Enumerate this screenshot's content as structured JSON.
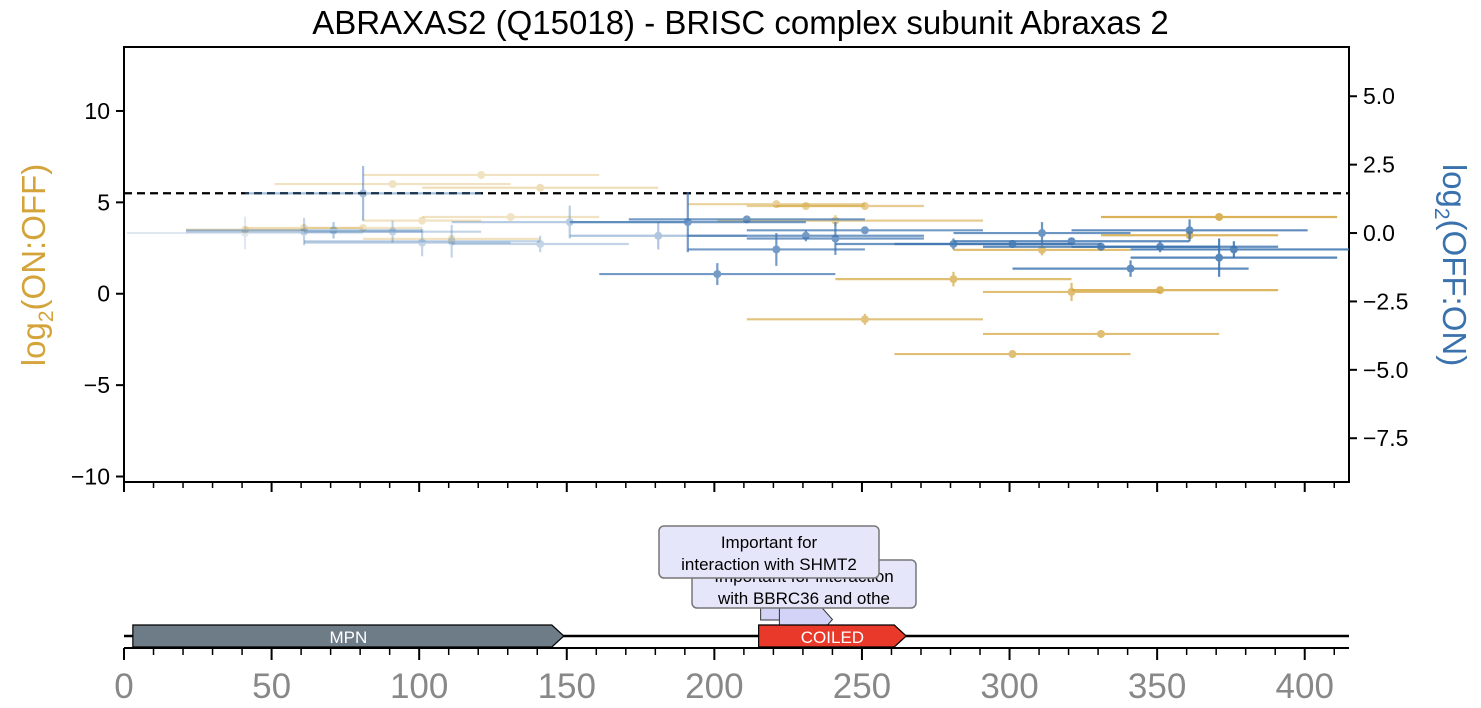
{
  "chart_data": {
    "type": "scatter",
    "title": "ABRAXAS2 (Q15018) - BRISC complex subunit Abraxas 2",
    "left_axis_label": {
      "main": "log",
      "sub": "2",
      "rest": "(ON:OFF)"
    },
    "right_axis_label": {
      "main": "log",
      "sub": "2",
      "rest": "(OFF:ON)"
    },
    "colors": {
      "on_off": "#D4A43A",
      "off_on": "#3A72AE",
      "coiled": "#E8392A",
      "mpn": "#6E7C88",
      "region": "#D3D3F7"
    },
    "x_range": [
      0,
      415
    ],
    "left_ylim": [
      -10.3,
      13.5
    ],
    "right_ylim": [
      -9.1,
      6.8
    ],
    "left_yticks": [
      "10",
      "5",
      "0",
      "−5",
      "−10"
    ],
    "left_ytick_values": [
      10,
      5,
      0,
      -5,
      -10
    ],
    "right_yticks": [
      "5.0",
      "2.5",
      "0.0",
      "−2.5",
      "−5.0",
      "−7.5"
    ],
    "right_ytick_values": [
      5.0,
      2.5,
      0.0,
      -2.5,
      -5.0,
      -7.5
    ],
    "threshold_left": 5.5,
    "xticks": [
      "0",
      "50",
      "100",
      "150",
      "200",
      "250",
      "300",
      "350",
      "400"
    ],
    "xtick_values": [
      0,
      50,
      100,
      150,
      200,
      250,
      300,
      350,
      400
    ],
    "series": [
      {
        "name": "log2(ON:OFF)",
        "axis": "left",
        "points": [
          {
            "x": 41,
            "y": 3.5,
            "xmin": 21,
            "xmax": 61,
            "yerr": 0.2,
            "alpha": 0.35
          },
          {
            "x": 61,
            "y": 3.6,
            "xmin": 41,
            "xmax": 81,
            "yerr": 0.2,
            "alpha": 0.35
          },
          {
            "x": 81,
            "y": 3.6,
            "xmin": 61,
            "xmax": 101,
            "yerr": 0.2,
            "alpha": 0.3
          },
          {
            "x": 91,
            "y": 6.0,
            "xmin": 51,
            "xmax": 131,
            "yerr": 0.2,
            "alpha": 0.3
          },
          {
            "x": 101,
            "y": 4.0,
            "xmin": 81,
            "xmax": 121,
            "yerr": 0.2,
            "alpha": 0.3
          },
          {
            "x": 111,
            "y": 3.0,
            "xmin": 81,
            "xmax": 141,
            "yerr": 0.2,
            "alpha": 0.3
          },
          {
            "x": 121,
            "y": 6.5,
            "xmin": 81,
            "xmax": 161,
            "yerr": 0.2,
            "alpha": 0.3
          },
          {
            "x": 131,
            "y": 4.2,
            "xmin": 101,
            "xmax": 161,
            "yerr": 0.2,
            "alpha": 0.3
          },
          {
            "x": 141,
            "y": 5.8,
            "xmin": 101,
            "xmax": 181,
            "yerr": 0.2,
            "alpha": 0.35
          },
          {
            "x": 221,
            "y": 4.9,
            "xmin": 191,
            "xmax": 251,
            "yerr": 0.2,
            "alpha": 0.5
          },
          {
            "x": 231,
            "y": 4.8,
            "xmin": 211,
            "xmax": 251,
            "yerr": 0.2,
            "alpha": 0.5
          },
          {
            "x": 241,
            "y": 4.0,
            "xmin": 201,
            "xmax": 291,
            "yerr": 0.3,
            "alpha": 0.55
          },
          {
            "x": 251,
            "y": 4.8,
            "xmin": 221,
            "xmax": 271,
            "yerr": 0.2,
            "alpha": 0.55
          },
          {
            "x": 251,
            "y": -1.4,
            "xmin": 211,
            "xmax": 291,
            "yerr": 0.3,
            "alpha": 0.65
          },
          {
            "x": 281,
            "y": 0.8,
            "xmin": 241,
            "xmax": 321,
            "yerr": 0.4,
            "alpha": 0.7
          },
          {
            "x": 301,
            "y": -3.3,
            "xmin": 261,
            "xmax": 341,
            "yerr": 0.2,
            "alpha": 0.7
          },
          {
            "x": 311,
            "y": 2.4,
            "xmin": 281,
            "xmax": 341,
            "yerr": 0.3,
            "alpha": 0.7
          },
          {
            "x": 321,
            "y": 0.1,
            "xmin": 291,
            "xmax": 351,
            "yerr": 0.5,
            "alpha": 0.7
          },
          {
            "x": 331,
            "y": -2.2,
            "xmin": 291,
            "xmax": 371,
            "yerr": 0.2,
            "alpha": 0.7
          },
          {
            "x": 351,
            "y": 0.2,
            "xmin": 321,
            "xmax": 391,
            "yerr": 0.2,
            "alpha": 0.8
          },
          {
            "x": 361,
            "y": 3.2,
            "xmin": 331,
            "xmax": 391,
            "yerr": 0.2,
            "alpha": 0.8
          },
          {
            "x": 371,
            "y": 4.2,
            "xmin": 331,
            "xmax": 411,
            "yerr": 0.2,
            "alpha": 0.85
          }
        ]
      },
      {
        "name": "log2(OFF:ON)",
        "axis": "right",
        "points": [
          {
            "x": 41,
            "y": 0.0,
            "xmin": 1,
            "xmax": 81,
            "yerr": 0.6,
            "alpha": 0.15
          },
          {
            "x": 61,
            "y": 0.05,
            "xmin": 21,
            "xmax": 101,
            "yerr": 0.5,
            "alpha": 0.3
          },
          {
            "x": 71,
            "y": 0.1,
            "xmin": 21,
            "xmax": 101,
            "yerr": 0.3,
            "alpha": 0.4
          },
          {
            "x": 81,
            "y": 1.45,
            "xmin": 41,
            "xmax": 121,
            "yerr": 1.0,
            "alpha": 0.45
          },
          {
            "x": 91,
            "y": 0.05,
            "xmin": 61,
            "xmax": 121,
            "yerr": 0.4,
            "alpha": 0.3
          },
          {
            "x": 101,
            "y": -0.35,
            "xmin": 61,
            "xmax": 131,
            "yerr": 0.5,
            "alpha": 0.3
          },
          {
            "x": 111,
            "y": -0.3,
            "xmin": 61,
            "xmax": 141,
            "yerr": 0.6,
            "alpha": 0.3
          },
          {
            "x": 141,
            "y": -0.4,
            "xmin": 111,
            "xmax": 171,
            "yerr": 0.3,
            "alpha": 0.3
          },
          {
            "x": 151,
            "y": 0.4,
            "xmin": 111,
            "xmax": 191,
            "yerr": 0.6,
            "alpha": 0.35
          },
          {
            "x": 181,
            "y": -0.1,
            "xmin": 151,
            "xmax": 211,
            "yerr": 0.5,
            "alpha": 0.4
          },
          {
            "x": 191,
            "y": 0.4,
            "xmin": 151,
            "xmax": 231,
            "yerr": 1.1,
            "alpha": 0.7
          },
          {
            "x": 201,
            "y": -1.5,
            "xmin": 161,
            "xmax": 241,
            "yerr": 0.4,
            "alpha": 0.7
          },
          {
            "x": 211,
            "y": 0.5,
            "xmin": 171,
            "xmax": 251,
            "yerr": 0.1,
            "alpha": 0.7
          },
          {
            "x": 221,
            "y": -0.6,
            "xmin": 191,
            "xmax": 251,
            "yerr": 0.6,
            "alpha": 0.7
          },
          {
            "x": 231,
            "y": -0.1,
            "xmin": 191,
            "xmax": 271,
            "yerr": 0.2,
            "alpha": 0.7
          },
          {
            "x": 241,
            "y": -0.2,
            "xmin": 211,
            "xmax": 271,
            "yerr": 0.6,
            "alpha": 0.7
          },
          {
            "x": 251,
            "y": 0.1,
            "xmin": 211,
            "xmax": 291,
            "yerr": 0.1,
            "alpha": 0.7
          },
          {
            "x": 281,
            "y": -0.4,
            "xmin": 241,
            "xmax": 321,
            "yerr": 0.2,
            "alpha": 0.75
          },
          {
            "x": 301,
            "y": -0.4,
            "xmin": 261,
            "xmax": 331,
            "yerr": 0.1,
            "alpha": 0.75
          },
          {
            "x": 311,
            "y": 0.0,
            "xmin": 281,
            "xmax": 341,
            "yerr": 0.4,
            "alpha": 0.75
          },
          {
            "x": 321,
            "y": -0.3,
            "xmin": 281,
            "xmax": 361,
            "yerr": 0.1,
            "alpha": 0.8
          },
          {
            "x": 331,
            "y": -0.5,
            "xmin": 291,
            "xmax": 371,
            "yerr": 0.1,
            "alpha": 0.8
          },
          {
            "x": 341,
            "y": -1.3,
            "xmin": 301,
            "xmax": 381,
            "yerr": 0.3,
            "alpha": 0.8
          },
          {
            "x": 351,
            "y": -0.5,
            "xmin": 321,
            "xmax": 391,
            "yerr": 0.2,
            "alpha": 0.8
          },
          {
            "x": 361,
            "y": 0.1,
            "xmin": 321,
            "xmax": 401,
            "yerr": 0.4,
            "alpha": 0.8
          },
          {
            "x": 371,
            "y": -0.9,
            "xmin": 341,
            "xmax": 411,
            "yerr": 0.7,
            "alpha": 0.85
          },
          {
            "x": 376,
            "y": -0.6,
            "xmin": 341,
            "xmax": 415,
            "yerr": 0.3,
            "alpha": 0.85
          }
        ]
      }
    ],
    "domains": [
      {
        "label": "MPN",
        "start": 3,
        "end": 149,
        "color": "#6E7C88"
      },
      {
        "label": "COILED",
        "start": 215,
        "end": 265,
        "color": "#E8392A"
      }
    ],
    "regions": [
      {
        "label": "Important for interaction with SHMT2",
        "lines": [
          "Important for",
          "interaction with SHMT2"
        ],
        "start": 215,
        "end": 226
      },
      {
        "label": "Important for interaction with BBRC36 and othe",
        "lines": [
          "Important for interaction",
          "with BBRC36 and othe"
        ],
        "start": 220,
        "end": 240
      }
    ]
  }
}
